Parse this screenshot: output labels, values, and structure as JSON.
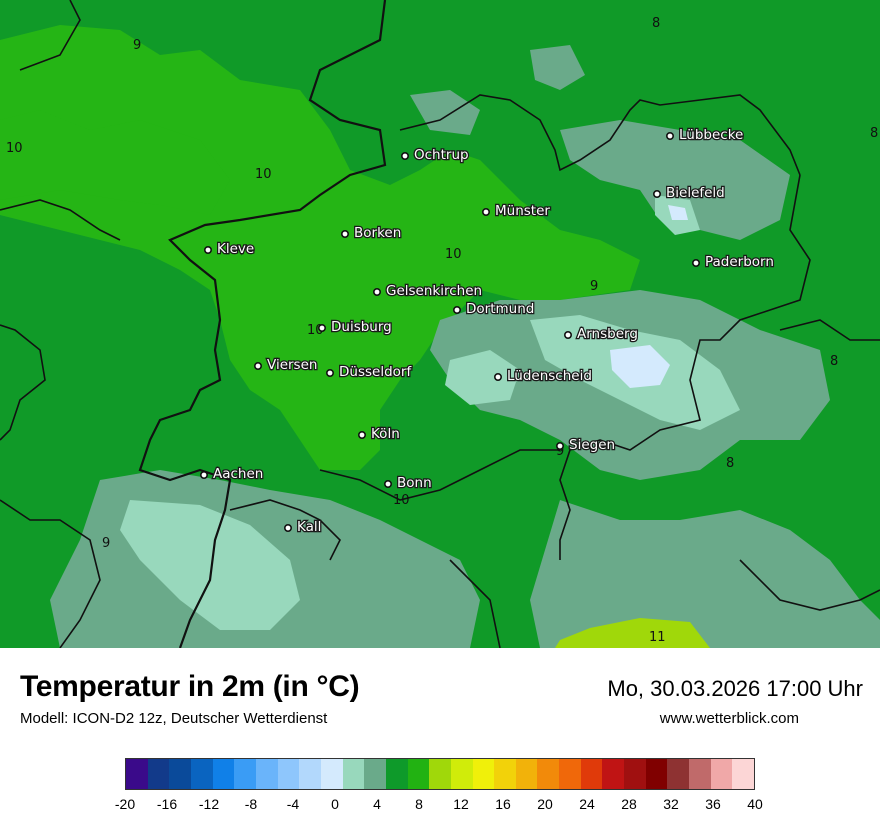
{
  "title": "Temperatur in 2m (in °C)",
  "model": "Modell: ICON-D2 12z, Deutscher Wetterdienst",
  "datetime": "Mo, 30.03.2026 17:00 Uhr",
  "website": "www.wetterblick.com",
  "cities": [
    {
      "name": "Lübbecke"
    },
    {
      "name": "Ochtrup"
    },
    {
      "name": "Bielefeld"
    },
    {
      "name": "Münster"
    },
    {
      "name": "Borken"
    },
    {
      "name": "Kleve"
    },
    {
      "name": "Paderborn"
    },
    {
      "name": "Gelsenkirchen"
    },
    {
      "name": "Dortmund"
    },
    {
      "name": "Duisburg"
    },
    {
      "name": "Arnsberg"
    },
    {
      "name": "Viersen"
    },
    {
      "name": "Düsseldorf"
    },
    {
      "name": "Lüdenscheid"
    },
    {
      "name": "Köln"
    },
    {
      "name": "Siegen"
    },
    {
      "name": "Aachen"
    },
    {
      "name": "Bonn"
    },
    {
      "name": "Kall"
    }
  ],
  "iso_labels": [
    "9",
    "8",
    "10",
    "10",
    "8",
    "10",
    "9",
    "10",
    "8",
    "9",
    "8",
    "10",
    "9",
    "11"
  ],
  "legend": {
    "colors": [
      "#3a0a8a",
      "#123a8a",
      "#0a4a9a",
      "#0a64c0",
      "#1080e8",
      "#3a9cf5",
      "#6ab4fa",
      "#8ec6fc",
      "#b2d8fc",
      "#d4eafd",
      "#98d8bc",
      "#6aaa8a",
      "#0e9a2a",
      "#22b212",
      "#a0d80a",
      "#d0ec0a",
      "#f0f00a",
      "#f2d20a",
      "#f2b20a",
      "#f28a0a",
      "#f0680a",
      "#e03a0a",
      "#c01414",
      "#a01010",
      "#800000",
      "#8e3232",
      "#c06a6a",
      "#f0a8a8",
      "#fcd6d6"
    ],
    "ticks": [
      "-20",
      "-16",
      "-12",
      "-8",
      "-4",
      "0",
      "4",
      "8",
      "12",
      "16",
      "20",
      "24",
      "28",
      "32",
      "36",
      "40"
    ]
  },
  "map_colors": {
    "t8": "#109a28",
    "t9": "#25b515",
    "t7": "#6aaa8a",
    "t6": "#98d8bc",
    "t5": "#d4eafd",
    "t11": "#a0d80a"
  }
}
